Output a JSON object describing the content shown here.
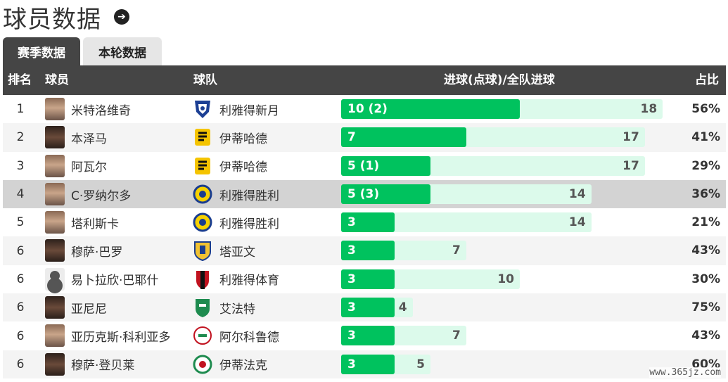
{
  "page": {
    "title": "球员数据",
    "watermark": "www.365jz.com"
  },
  "tabs": [
    {
      "label": "赛季数据",
      "active": true
    },
    {
      "label": "本轮数据",
      "active": false
    }
  ],
  "columns": {
    "rank": "排名",
    "player": "球员",
    "team": "球队",
    "goals": "进球(点球)/全队进球",
    "pct": "占比"
  },
  "colors": {
    "goal_bar": "#00c25e",
    "total_bar": "#dcfaeb",
    "header_bg": "#454545",
    "highlight_row": "#d3d3d3"
  },
  "rows": [
    {
      "rank": "1",
      "player": "米特洛维奇",
      "team": "利雅得新月",
      "team_logo": "al-hilal-logo",
      "goals": 10,
      "goals_label": "10 (2)",
      "team_goals": 18,
      "team_goals_label": "18",
      "pct": "56%"
    },
    {
      "rank": "2",
      "player": "本泽马",
      "team": "伊蒂哈德",
      "team_logo": "al-ittihad-logo",
      "goals": 7,
      "goals_label": "7",
      "team_goals": 17,
      "team_goals_label": "17",
      "pct": "41%"
    },
    {
      "rank": "3",
      "player": "阿瓦尔",
      "team": "伊蒂哈德",
      "team_logo": "al-ittihad-logo",
      "goals": 5,
      "goals_label": "5 (1)",
      "team_goals": 17,
      "team_goals_label": "17",
      "pct": "29%"
    },
    {
      "rank": "4",
      "player": "C·罗纳尔多",
      "team": "利雅得胜利",
      "team_logo": "al-nassr-logo",
      "goals": 5,
      "goals_label": "5 (3)",
      "team_goals": 14,
      "team_goals_label": "14",
      "pct": "36%",
      "highlight": true
    },
    {
      "rank": "5",
      "player": "塔利斯卡",
      "team": "利雅得胜利",
      "team_logo": "al-nassr-logo",
      "goals": 3,
      "goals_label": "3",
      "team_goals": 14,
      "team_goals_label": "14",
      "pct": "21%"
    },
    {
      "rank": "6",
      "player": "穆萨·巴罗",
      "team": "塔亚文",
      "team_logo": "al-taawoun-logo",
      "goals": 3,
      "goals_label": "3",
      "team_goals": 7,
      "team_goals_label": "7",
      "pct": "43%"
    },
    {
      "rank": "6",
      "player": "易卜拉欣·巴耶什",
      "team": "利雅得体育",
      "team_logo": "al-riyadh-logo",
      "goals": 3,
      "goals_label": "3",
      "team_goals": 10,
      "team_goals_label": "10",
      "pct": "30%"
    },
    {
      "rank": "6",
      "player": "亚尼尼",
      "team": "艾法特",
      "team_logo": "al-fateh-logo",
      "goals": 3,
      "goals_label": "3",
      "team_goals": 4,
      "team_goals_label": "4",
      "pct": "75%"
    },
    {
      "rank": "6",
      "player": "亚历克斯·科利亚多",
      "team": "阿尔科鲁德",
      "team_logo": "al-akhdoud-logo",
      "goals": 3,
      "goals_label": "3",
      "team_goals": 7,
      "team_goals_label": "7",
      "pct": "43%"
    },
    {
      "rank": "6",
      "player": "穆萨·登贝莱",
      "team": "伊蒂法克",
      "team_logo": "al-ettifaq-logo",
      "goals": 3,
      "goals_label": "3",
      "team_goals": 5,
      "team_goals_label": "5",
      "pct": "60%"
    }
  ]
}
